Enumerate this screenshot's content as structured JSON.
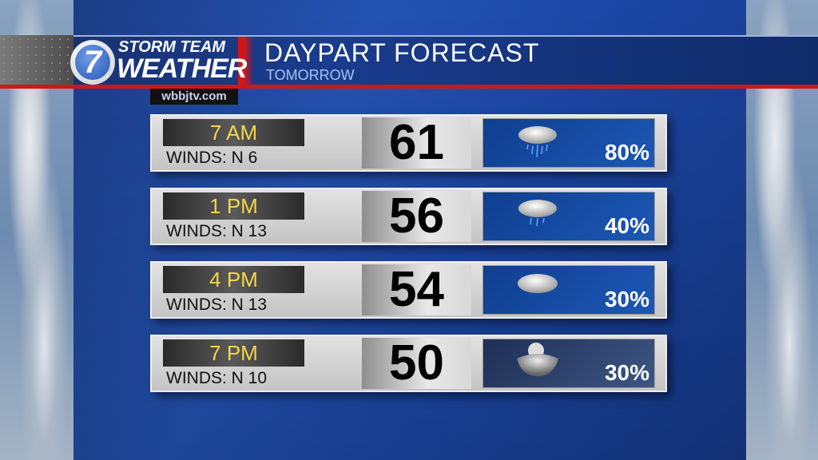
{
  "header": {
    "brand_line1": "STORM TEAM",
    "brand_line2": "WEATHER",
    "logo_number": "7",
    "website": "wbbjtv.com",
    "title": "DAYPART FORECAST",
    "subtitle": "TOMORROW"
  },
  "colors": {
    "accent_red": "#d0161a",
    "time_text": "#f3d64a",
    "panel_blue": "#1b47a6"
  },
  "rows": [
    {
      "time": "7 AM",
      "winds": "WINDS: N 6",
      "temp": "61",
      "precip": "80%",
      "icon": "rain-cloud-icon"
    },
    {
      "time": "1 PM",
      "winds": "WINDS: N 13",
      "temp": "56",
      "precip": "40%",
      "icon": "light-rain-cloud-icon"
    },
    {
      "time": "4 PM",
      "winds": "WINDS: N 13",
      "temp": "54",
      "precip": "30%",
      "icon": "cloudy-icon"
    },
    {
      "time": "7 PM",
      "winds": "WINDS: N 10",
      "temp": "50",
      "precip": "30%",
      "icon": "night-cloudy-moon-icon"
    }
  ]
}
